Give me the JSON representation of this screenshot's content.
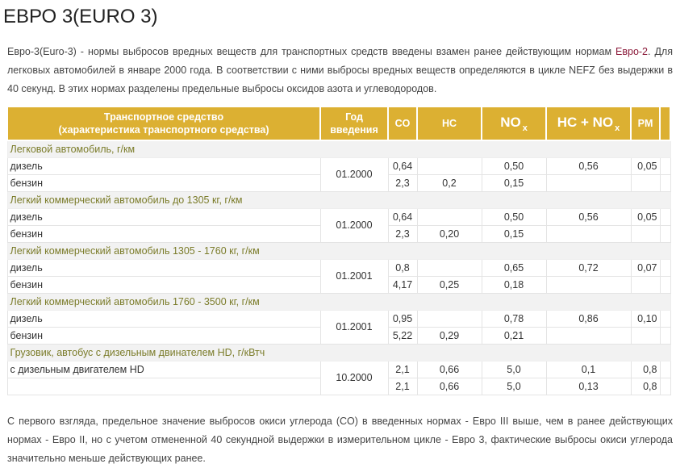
{
  "title": "ЕВРО 3(EURO 3)",
  "intro": {
    "text_before": "Евро-3(Euro-3) - нормы выбросов вредных веществ для транспортных средств введены взамен ранее действующим нормам ",
    "link": "Евро-2",
    "text_after": ". Для легковых автомобилей в январе 2000 года. В соответствии с ними выбросы вредных веществ определяются в цикле NEFZ без выдержки в 40 секунд. В этих нормах разделены предельные выбросы оксидов азота и углеводородов."
  },
  "table": {
    "headers": {
      "vehicle_line1": "Транспортное средство",
      "vehicle_line2": "(характеристика транспортного средства)",
      "year_line1": "Год",
      "year_line2": "введения",
      "co": "CO",
      "hc": "HC",
      "nox": "NO",
      "nox_sub": "x",
      "hcnox": "HC + NO",
      "hcnox_sub": "x",
      "pm": "PM"
    },
    "groups": [
      {
        "category": "Легковой автомобиль, г/км",
        "year": "01.2000",
        "rows": [
          {
            "label": "дизель",
            "co": "0,64",
            "hc": "",
            "nox": "0,50",
            "hcnox": "0,56",
            "pm": "0,05"
          },
          {
            "label": "бензин",
            "co": "2,3",
            "hc": "0,2",
            "nox": "0,15",
            "hcnox": "",
            "pm": ""
          }
        ]
      },
      {
        "category": "Легкий коммерческий автомобиль до 1305 кг, г/км",
        "year": "01.2000",
        "rows": [
          {
            "label": "дизель",
            "co": "0,64",
            "hc": "",
            "nox": "0,50",
            "hcnox": "0,56",
            "pm": "0,05"
          },
          {
            "label": "бензин",
            "co": "2,3",
            "hc": "0,20",
            "nox": "0,15",
            "hcnox": "",
            "pm": ""
          }
        ]
      },
      {
        "category": "Легкий коммерческий автомобиль 1305 - 1760 кг, г/км",
        "year": "01.2001",
        "rows": [
          {
            "label": "дизель",
            "co": "0,8",
            "hc": "",
            "nox": "0,65",
            "hcnox": "0,72",
            "pm": "0,07"
          },
          {
            "label": "бензин",
            "co": "4,17",
            "hc": "0,25",
            "nox": "0,18",
            "hcnox": "",
            "pm": ""
          }
        ]
      },
      {
        "category": "Легкий коммерческий автомобиль 1760 - 3500 кг, г/км",
        "year": "01.2001",
        "rows": [
          {
            "label": "дизель",
            "co": "0,95",
            "hc": "",
            "nox": "0,78",
            "hcnox": "0,86",
            "pm": "0,10"
          },
          {
            "label": "бензин",
            "co": "5,22",
            "hc": "0,29",
            "nox": "0,21",
            "hcnox": "",
            "pm": ""
          }
        ]
      },
      {
        "category": "Грузовик, автобус с дизельным двинателем HD, г/кВтч",
        "year": "10.2000",
        "rows": [
          {
            "label": "с дизельным двигателем HD",
            "co": "2,1",
            "hc": "0,66",
            "nox": "5,0",
            "hcnox": "0,1",
            "pm": "0,8"
          },
          {
            "label": "",
            "co": "2,1",
            "hc": "0,66",
            "nox": "5,0",
            "hcnox": "0,13",
            "pm": "0,8"
          }
        ]
      }
    ]
  },
  "outro": "С первого взгляда, предельное значение выбросов окиси углерода (CO) в введенных нормах - Евро III выше, чем в ранее действующих нормах - Евро II, но с учетом отмененной 40 секундной выдержки в измерительном цикле - Евро 3, фактические выбросы окиси углерода значительно меньше действующих ранее.",
  "colors": {
    "header_bg": "#dcb032",
    "category_text": "#7b7c2a",
    "category_bg": "#f2f2f2",
    "link": "#8b1a3a"
  }
}
